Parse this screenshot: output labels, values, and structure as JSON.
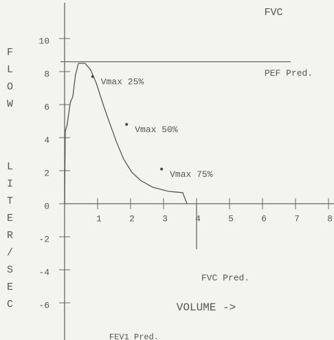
{
  "chart_data": {
    "type": "line",
    "title": "FVC",
    "y_label": [
      "FLOW",
      "LITER/SEC"
    ],
    "x_label": "VOLUME ->",
    "x": [
      0,
      0.02,
      0.08,
      0.17,
      0.25,
      0.33,
      0.42,
      0.62,
      0.79,
      0.96,
      1.17,
      1.38,
      1.58,
      1.79,
      2.04,
      2.31,
      2.67,
      3.15,
      3.58,
      3.71
    ],
    "series": [
      {
        "color": "#555555",
        "values": [
          0,
          4.4,
          4.8,
          6.1,
          6.5,
          7.8,
          8.5,
          8.5,
          8.1,
          7.3,
          6.0,
          4.8,
          3.7,
          2.7,
          1.9,
          1.4,
          1.0,
          0.75,
          0.67,
          0
        ]
      }
    ],
    "markers": [
      {
        "label": "Vmax 25%",
        "x": 0.85,
        "y": 7.7
      },
      {
        "label": "Vmax 50%",
        "x": 1.88,
        "y": 4.8
      },
      {
        "label": "Vmax 75%",
        "x": 2.94,
        "y": 2.1
      }
    ],
    "reference_lines": [
      {
        "label": "PEF Pred.",
        "y": 8.6
      },
      {
        "label": "FVC Pred.",
        "x": 4
      }
    ],
    "footnote": "FEV1 Pred.",
    "xlim": [
      0,
      8
    ],
    "ylim": [
      -8,
      12
    ],
    "xticks": [
      1,
      2,
      3,
      4,
      5,
      6,
      7,
      8
    ],
    "yticks": [
      -6,
      -4,
      -2,
      0,
      2,
      4,
      6,
      8,
      10
    ]
  }
}
